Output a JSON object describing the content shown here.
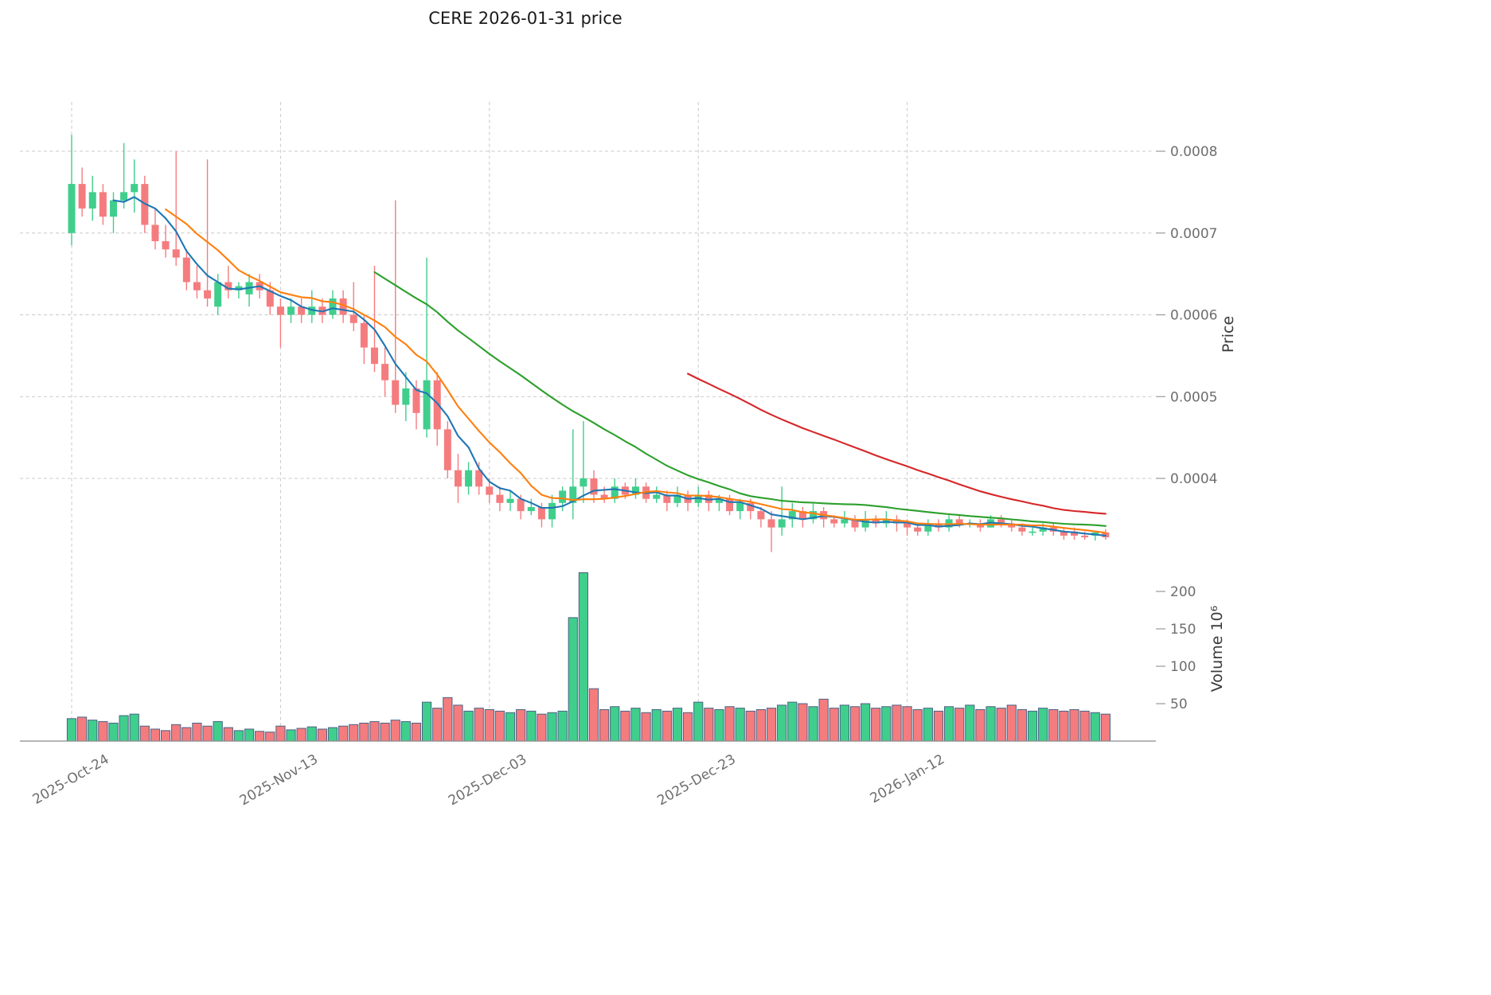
{
  "page": {
    "background": "#ffffff"
  },
  "chart_data": {
    "type": "candlestick",
    "title": "CERE  2026-01-31  price",
    "start_date": "2025-10-24",
    "end_date": "2026-01-31",
    "frequency": "daily",
    "grid": "dashed",
    "price_axis": {
      "label": "Price",
      "side": "right",
      "ticks": [
        0.0004,
        0.0005,
        0.0006,
        0.0007,
        0.0008
      ]
    },
    "volume_axis": {
      "label": "Volume  10⁶",
      "side": "right",
      "unit": "10^6",
      "ticks": [
        50,
        100,
        150,
        200
      ]
    },
    "x_axis": {
      "tick_labels": [
        "2025-Oct-24",
        "2025-Nov-13",
        "2025-Dec-03",
        "2025-Dec-23",
        "2026-Jan-12"
      ],
      "tick_indices": [
        0,
        20,
        40,
        60,
        80
      ]
    },
    "moving_averages": [
      {
        "window": 5,
        "color": "#1f77b4"
      },
      {
        "window": 10,
        "color": "#ff7f0e"
      },
      {
        "window": 30,
        "color": "#2ca02c"
      },
      {
        "window": 60,
        "color": "#d62728"
      }
    ],
    "colors": {
      "up": "#40ce8c",
      "down": "#f57c7e",
      "volume_edge": "#4a6285",
      "grid": "#c9c9c9",
      "tick_label": "#6e6e6e",
      "title": "#1a1a1a"
    },
    "candles": {
      "columns": [
        "open",
        "high",
        "low",
        "close",
        "volume_millions"
      ],
      "rows": [
        [
          0.0007,
          0.00082,
          0.000685,
          0.00076,
          30
        ],
        [
          0.00076,
          0.00078,
          0.00072,
          0.00073,
          32
        ],
        [
          0.00073,
          0.00077,
          0.000715,
          0.00075,
          28
        ],
        [
          0.00075,
          0.00076,
          0.00071,
          0.00072,
          26
        ],
        [
          0.00072,
          0.00075,
          0.0007,
          0.00074,
          24
        ],
        [
          0.00074,
          0.00081,
          0.00073,
          0.00075,
          34
        ],
        [
          0.00075,
          0.00079,
          0.000725,
          0.00076,
          36
        ],
        [
          0.00076,
          0.00077,
          0.0007,
          0.00071,
          20
        ],
        [
          0.00071,
          0.00073,
          0.00068,
          0.00069,
          16
        ],
        [
          0.00069,
          0.00071,
          0.00067,
          0.00068,
          14
        ],
        [
          0.00068,
          0.0008,
          0.00066,
          0.00067,
          22
        ],
        [
          0.00067,
          0.00068,
          0.00063,
          0.00064,
          18
        ],
        [
          0.00064,
          0.00066,
          0.00062,
          0.00063,
          24
        ],
        [
          0.00063,
          0.00079,
          0.00061,
          0.00062,
          20
        ],
        [
          0.00061,
          0.00065,
          0.0006,
          0.00064,
          26
        ],
        [
          0.00064,
          0.00066,
          0.00062,
          0.00063,
          18
        ],
        [
          0.00063,
          0.00064,
          0.00062,
          0.000635,
          14
        ],
        [
          0.000625,
          0.00065,
          0.00061,
          0.00064,
          16
        ],
        [
          0.00064,
          0.00065,
          0.00062,
          0.00063,
          13
        ],
        [
          0.00063,
          0.00064,
          0.0006,
          0.00061,
          12
        ],
        [
          0.00061,
          0.00062,
          0.00056,
          0.0006,
          20
        ],
        [
          0.0006,
          0.00062,
          0.00059,
          0.00061,
          15
        ],
        [
          0.00061,
          0.00062,
          0.00059,
          0.0006,
          17
        ],
        [
          0.0006,
          0.00063,
          0.00059,
          0.00061,
          19
        ],
        [
          0.00061,
          0.00062,
          0.00059,
          0.0006,
          16
        ],
        [
          0.0006,
          0.00063,
          0.000595,
          0.00062,
          18
        ],
        [
          0.00062,
          0.00063,
          0.00059,
          0.0006,
          20
        ],
        [
          0.0006,
          0.00064,
          0.00058,
          0.00059,
          22
        ],
        [
          0.00059,
          0.0006,
          0.00054,
          0.00056,
          24
        ],
        [
          0.00056,
          0.00066,
          0.00053,
          0.00054,
          26
        ],
        [
          0.00054,
          0.00056,
          0.0005,
          0.00052,
          24
        ],
        [
          0.00052,
          0.00074,
          0.00048,
          0.00049,
          28
        ],
        [
          0.00049,
          0.00053,
          0.00047,
          0.00051,
          26
        ],
        [
          0.00051,
          0.00052,
          0.00046,
          0.00048,
          24
        ],
        [
          0.00046,
          0.00067,
          0.00045,
          0.00052,
          52
        ],
        [
          0.00052,
          0.00053,
          0.00044,
          0.00046,
          44
        ],
        [
          0.00046,
          0.00047,
          0.0004,
          0.00041,
          58
        ],
        [
          0.00041,
          0.00043,
          0.00037,
          0.00039,
          48
        ],
        [
          0.00039,
          0.00042,
          0.00038,
          0.00041,
          40
        ],
        [
          0.00041,
          0.00042,
          0.00038,
          0.00039,
          44
        ],
        [
          0.00039,
          0.0004,
          0.00037,
          0.00038,
          42
        ],
        [
          0.00038,
          0.00039,
          0.00036,
          0.00037,
          40
        ],
        [
          0.00037,
          0.000385,
          0.00036,
          0.000375,
          38
        ],
        [
          0.000375,
          0.00038,
          0.00035,
          0.00036,
          42
        ],
        [
          0.00036,
          0.000375,
          0.000355,
          0.000365,
          40
        ],
        [
          0.000365,
          0.00037,
          0.00034,
          0.00035,
          36
        ],
        [
          0.00035,
          0.00038,
          0.00034,
          0.00037,
          38
        ],
        [
          0.00037,
          0.00039,
          0.00036,
          0.000385,
          40
        ],
        [
          0.00037,
          0.00046,
          0.00035,
          0.00039,
          165
        ],
        [
          0.00039,
          0.00047,
          0.00037,
          0.0004,
          225
        ],
        [
          0.0004,
          0.00041,
          0.00037,
          0.00038,
          70
        ],
        [
          0.00038,
          0.00039,
          0.00037,
          0.000375,
          42
        ],
        [
          0.000375,
          0.0004,
          0.00037,
          0.00039,
          46
        ],
        [
          0.00039,
          0.000395,
          0.000375,
          0.00038,
          40
        ],
        [
          0.00038,
          0.0004,
          0.000375,
          0.00039,
          44
        ],
        [
          0.00039,
          0.000395,
          0.00037,
          0.000375,
          38
        ],
        [
          0.000375,
          0.00039,
          0.00037,
          0.00038,
          42
        ],
        [
          0.00038,
          0.000385,
          0.00036,
          0.00037,
          40
        ],
        [
          0.00037,
          0.00039,
          0.000365,
          0.00038,
          44
        ],
        [
          0.00038,
          0.000385,
          0.00036,
          0.00037,
          38
        ],
        [
          0.00037,
          0.00039,
          0.000365,
          0.00038,
          52
        ],
        [
          0.00038,
          0.000385,
          0.00036,
          0.00037,
          44
        ],
        [
          0.00037,
          0.00038,
          0.00036,
          0.000375,
          42
        ],
        [
          0.000375,
          0.00038,
          0.000355,
          0.00036,
          46
        ],
        [
          0.00036,
          0.000375,
          0.00035,
          0.00037,
          44
        ],
        [
          0.00037,
          0.000375,
          0.00035,
          0.00036,
          40
        ],
        [
          0.00036,
          0.000365,
          0.00034,
          0.00035,
          42
        ],
        [
          0.00035,
          0.00036,
          0.00031,
          0.00034,
          44
        ],
        [
          0.00034,
          0.00039,
          0.00033,
          0.00035,
          48
        ],
        [
          0.00035,
          0.00037,
          0.00034,
          0.00036,
          52
        ],
        [
          0.00036,
          0.000365,
          0.00034,
          0.00035,
          50
        ],
        [
          0.00035,
          0.00037,
          0.000345,
          0.00036,
          46
        ],
        [
          0.00036,
          0.000365,
          0.00034,
          0.00035,
          56
        ],
        [
          0.00035,
          0.000355,
          0.00034,
          0.000345,
          44
        ],
        [
          0.000345,
          0.00036,
          0.00034,
          0.00035,
          48
        ],
        [
          0.00035,
          0.000355,
          0.000335,
          0.00034,
          46
        ],
        [
          0.00034,
          0.00036,
          0.000335,
          0.00035,
          50
        ],
        [
          0.00035,
          0.000355,
          0.00034,
          0.000345,
          44
        ],
        [
          0.000345,
          0.00036,
          0.00034,
          0.00035,
          46
        ],
        [
          0.00035,
          0.000355,
          0.000335,
          0.000345,
          48
        ],
        [
          0.000345,
          0.00035,
          0.00033,
          0.00034,
          46
        ],
        [
          0.00034,
          0.000345,
          0.00033,
          0.000335,
          42
        ],
        [
          0.000335,
          0.00035,
          0.00033,
          0.000345,
          44
        ],
        [
          0.000345,
          0.00035,
          0.000335,
          0.00034,
          40
        ],
        [
          0.00034,
          0.000355,
          0.000335,
          0.00035,
          46
        ],
        [
          0.00035,
          0.000355,
          0.00034,
          0.000345,
          44
        ],
        [
          0.000345,
          0.00035,
          0.00034,
          0.000345,
          48
        ],
        [
          0.000345,
          0.00035,
          0.000335,
          0.00034,
          42
        ],
        [
          0.00034,
          0.000355,
          0.00034,
          0.00035,
          46
        ],
        [
          0.00035,
          0.000355,
          0.00034,
          0.000345,
          44
        ],
        [
          0.000345,
          0.00035,
          0.000335,
          0.00034,
          48
        ],
        [
          0.00034,
          0.000345,
          0.00033,
          0.000335,
          42
        ],
        [
          0.000335,
          0.00034,
          0.00033,
          0.000335,
          40
        ],
        [
          0.000335,
          0.000345,
          0.00033,
          0.00034,
          44
        ],
        [
          0.00034,
          0.000345,
          0.00033,
          0.000335,
          42
        ],
        [
          0.000335,
          0.00034,
          0.000325,
          0.00033,
          40
        ],
        [
          0.000335,
          0.00034,
          0.000325,
          0.00033,
          42
        ],
        [
          0.00033,
          0.000335,
          0.000325,
          0.000328,
          40
        ],
        [
          0.00033,
          0.000336,
          0.000324,
          0.000334,
          38
        ],
        [
          0.000334,
          0.000338,
          0.000325,
          0.000328,
          36
        ]
      ]
    }
  }
}
